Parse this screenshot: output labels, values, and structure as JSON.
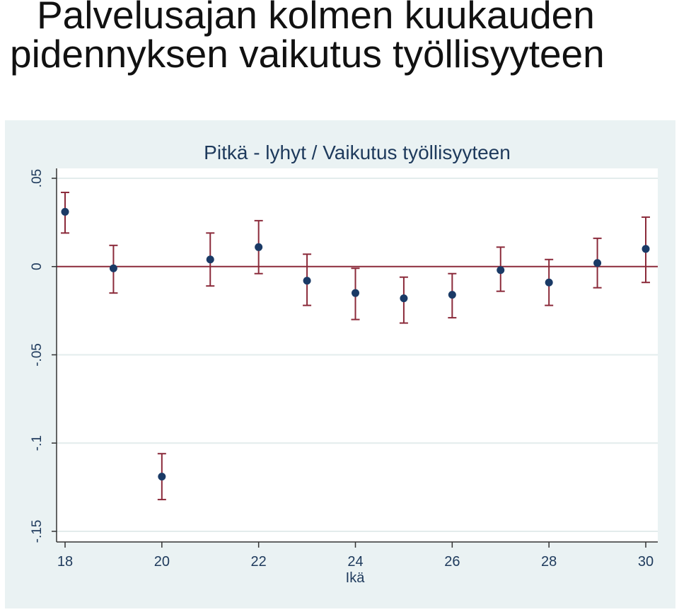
{
  "slide": {
    "title_line1": "Palvelusajan kolmen kuukauden",
    "title_line2": "pidennyksen vaikutus työllisyyteen"
  },
  "chart_data": {
    "type": "scatter",
    "title": "Pitkä - lyhyt / Vaikutus työllisyyteen",
    "xlabel": "Ikä",
    "ylabel": "",
    "xlim": [
      18,
      30
    ],
    "ylim": [
      -0.15,
      0.05
    ],
    "xticks": [
      18,
      20,
      22,
      24,
      26,
      28,
      30
    ],
    "xtick_labels": [
      "18",
      "20",
      "22",
      "24",
      "26",
      "28",
      "30"
    ],
    "yticks": [
      -0.15,
      -0.1,
      -0.05,
      0,
      0.05
    ],
    "ytick_labels": [
      "-.15",
      "-.1",
      "-.05",
      "0",
      ".05"
    ],
    "reference_line_y": 0,
    "grid": true,
    "colors": {
      "point": "#1a3a66",
      "error_bar": "#8b2a3a",
      "zero_line": "#8b2a3a",
      "plot_background": "#ffffff",
      "frame_background": "#eaf2f3",
      "grid": "#e3ecec"
    },
    "x": [
      18,
      19,
      20,
      21,
      22,
      23,
      24,
      25,
      26,
      27,
      28,
      29,
      30
    ],
    "y": [
      0.031,
      -0.001,
      -0.119,
      0.004,
      0.011,
      -0.008,
      -0.015,
      -0.018,
      -0.016,
      -0.002,
      -0.009,
      0.002,
      0.01
    ],
    "ci_low": [
      0.019,
      -0.015,
      -0.132,
      -0.011,
      -0.004,
      -0.022,
      -0.03,
      -0.032,
      -0.029,
      -0.014,
      -0.022,
      -0.012,
      -0.009
    ],
    "ci_high": [
      0.042,
      0.012,
      -0.106,
      0.019,
      0.026,
      0.007,
      -0.001,
      -0.006,
      -0.004,
      0.011,
      0.004,
      0.016,
      0.028
    ]
  }
}
